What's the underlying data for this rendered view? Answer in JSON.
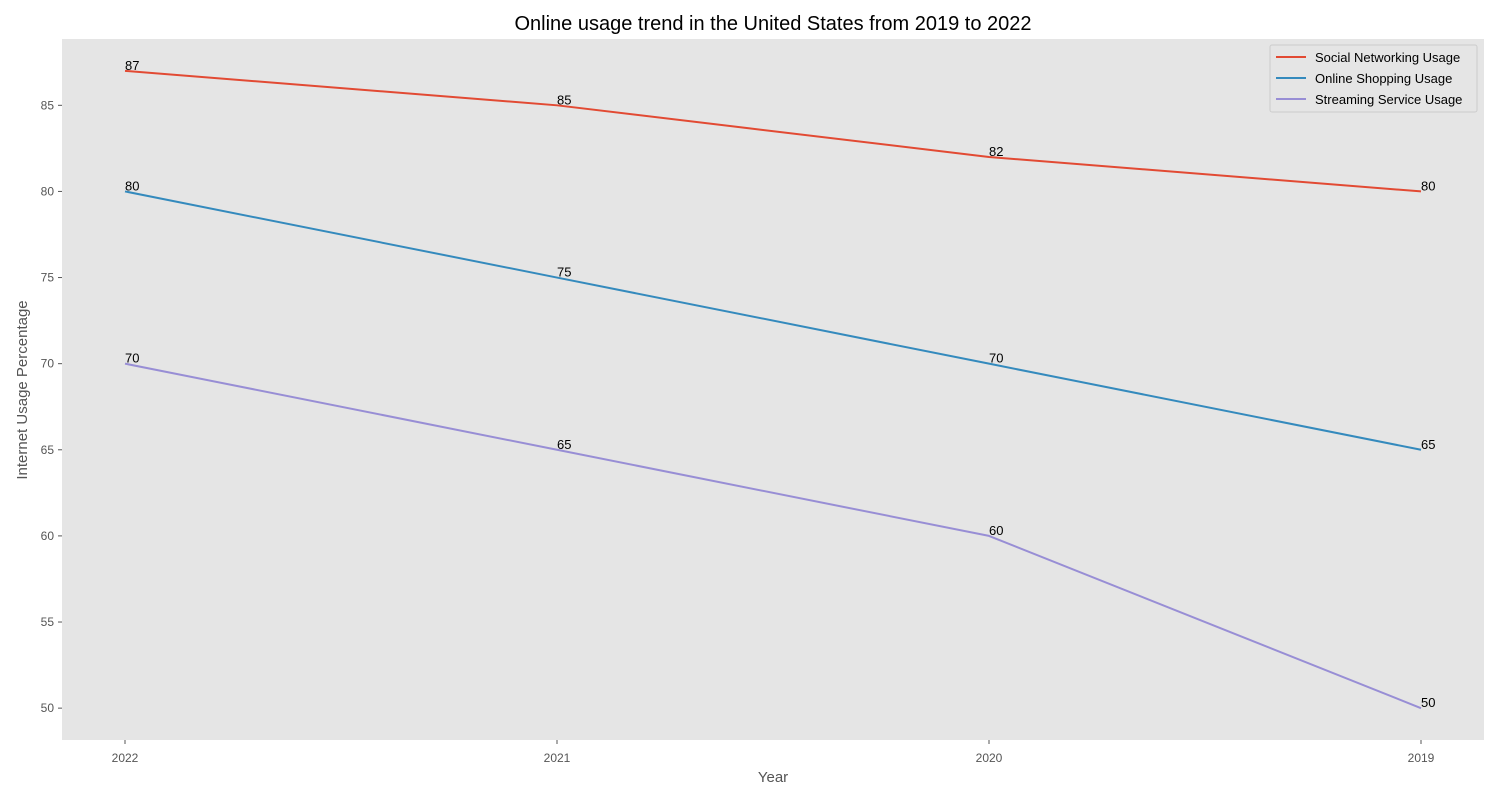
{
  "chart_data": {
    "type": "line",
    "title": "Online usage trend in the United States from 2019 to 2022",
    "xlabel": "Year",
    "ylabel": "Internet Usage Percentage",
    "categories": [
      "2022",
      "2021",
      "2020",
      "2019"
    ],
    "yticks": [
      50,
      55,
      60,
      65,
      70,
      75,
      80,
      85
    ],
    "ylim": [
      48.15,
      88.85
    ],
    "grid": false,
    "legend_position": "top-right",
    "background_color": "#e5e5e5",
    "series": [
      {
        "name": "Social Networking Usage",
        "color": "#e24a33",
        "values": [
          87,
          85,
          82,
          80
        ]
      },
      {
        "name": "Online Shopping Usage",
        "color": "#348abd",
        "values": [
          80,
          75,
          70,
          65
        ]
      },
      {
        "name": "Streaming Service Usage",
        "color": "#988ed5",
        "values": [
          70,
          65,
          60,
          50
        ]
      }
    ]
  }
}
